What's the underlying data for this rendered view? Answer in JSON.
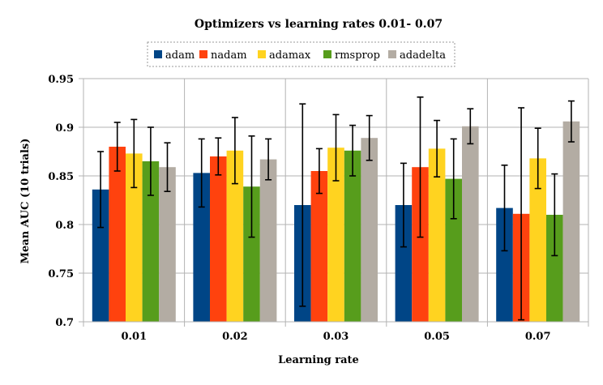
{
  "chart_data": {
    "type": "bar",
    "title": "Optimizers vs learning rates 0.01- 0.07",
    "xlabel": "Learning rate",
    "ylabel": "Mean AUC (10 trials)",
    "ylim": [
      0.7,
      0.95
    ],
    "yticks": [
      "0.7",
      "0.75",
      "0.8",
      "0.85",
      "0.9",
      "0.95"
    ],
    "categories": [
      "0.01",
      "0.02",
      "0.03",
      "0.05",
      "0.07"
    ],
    "grid": true,
    "legend_position": "top",
    "series": [
      {
        "name": "adam",
        "color": "#004586",
        "values": [
          0.836,
          0.853,
          0.82,
          0.82,
          0.817
        ],
        "err": [
          0.039,
          0.035,
          0.104,
          0.043,
          0.044
        ]
      },
      {
        "name": "nadam",
        "color": "#ff420e",
        "values": [
          0.88,
          0.87,
          0.855,
          0.859,
          0.811
        ],
        "err": [
          0.025,
          0.019,
          0.023,
          0.072,
          0.109
        ]
      },
      {
        "name": "adamax",
        "color": "#ffd320",
        "values": [
          0.873,
          0.876,
          0.879,
          0.878,
          0.868
        ],
        "err": [
          0.035,
          0.034,
          0.034,
          0.029,
          0.031
        ]
      },
      {
        "name": "rmsprop",
        "color": "#579d1c",
        "values": [
          0.865,
          0.839,
          0.876,
          0.847,
          0.81
        ],
        "err": [
          0.035,
          0.052,
          0.026,
          0.041,
          0.042
        ]
      },
      {
        "name": "adadelta",
        "color": "#b3aca3",
        "values": [
          0.859,
          0.867,
          0.889,
          0.901,
          0.906
        ],
        "err": [
          0.025,
          0.021,
          0.023,
          0.018,
          0.021
        ]
      }
    ]
  }
}
